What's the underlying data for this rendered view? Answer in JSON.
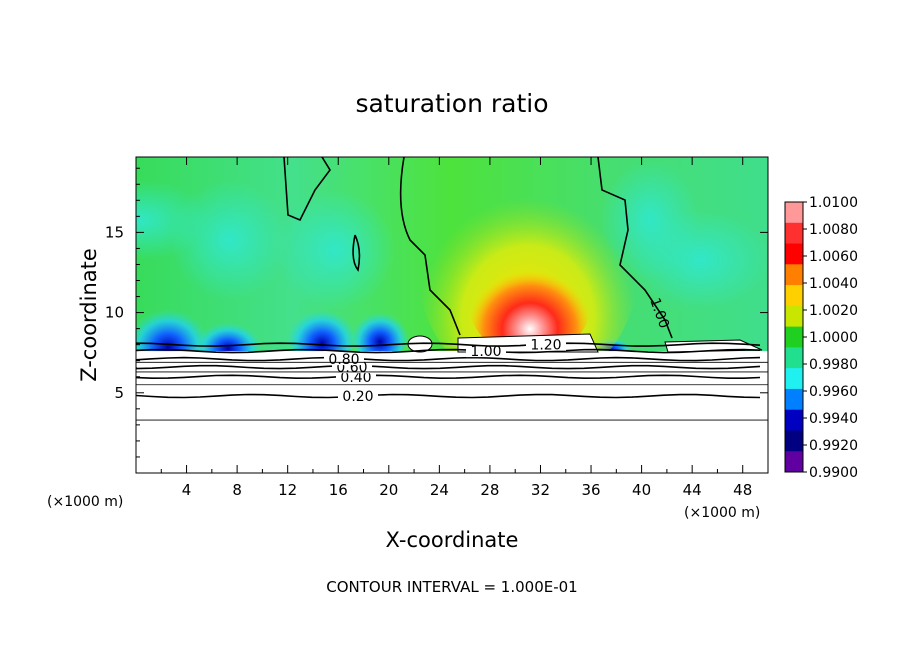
{
  "chart_data": {
    "type": "heatmap",
    "title": "saturation ratio",
    "xlabel": "X-coordinate",
    "ylabel": "Z-coordinate",
    "x_unit": "(×1000 m)",
    "footnote": "CONTOUR INTERVAL = 1.000E-01",
    "xlim": [
      0,
      50
    ],
    "ylim": [
      0,
      19.7
    ],
    "x_ticks": [
      "4",
      "8",
      "12",
      "16",
      "20",
      "24",
      "28",
      "32",
      "36",
      "40",
      "44",
      "48"
    ],
    "x_tick_values": [
      4,
      8,
      12,
      16,
      20,
      24,
      28,
      32,
      36,
      40,
      44,
      48
    ],
    "y_ticks": [
      "5",
      "10",
      "15"
    ],
    "y_tick_values": [
      5,
      10,
      15
    ],
    "colorbar": {
      "labels": [
        "1.0100",
        "1.0080",
        "1.0060",
        "1.0040",
        "1.0020",
        "1.0000",
        "0.9980",
        "0.9960",
        "0.9940",
        "0.9920",
        "0.9900"
      ],
      "values": [
        1.01,
        1.008,
        1.006,
        1.004,
        1.002,
        1.0,
        0.998,
        0.996,
        0.994,
        0.992,
        0.99
      ],
      "colors": [
        "#ff9999",
        "#ff3030",
        "#ff0000",
        "#ff8000",
        "#ffd000",
        "#c8e600",
        "#20d020",
        "#20e090",
        "#20f0f0",
        "#0080ff",
        "#0000c0",
        "#000080",
        "#6000a0"
      ]
    },
    "contour_lines": [
      {
        "level": 0.2,
        "label": "0.20",
        "z": 4.8
      },
      {
        "level": 0.4,
        "label": "0.40",
        "z": 6.0
      },
      {
        "level": 0.6,
        "label": "0.60",
        "z": 6.6
      },
      {
        "level": 0.8,
        "label": "0.80",
        "z": 7.1
      },
      {
        "level": 1.0,
        "label": "1.00",
        "z": 7.6
      },
      {
        "level": 1.2,
        "label": "1.20",
        "z": 8.0
      }
    ],
    "extra_contour_labels": [
      "1.00"
    ],
    "field_regions": [
      {
        "name": "upper background",
        "value": 1.0
      },
      {
        "name": "central supersaturated plume",
        "x_center": 29.5,
        "z_center": 10.5,
        "peak": 1.01
      },
      {
        "name": "subsaturated pockets near z≈8",
        "x_centers": [
          2.5,
          15,
          19
        ],
        "value": 0.992
      }
    ]
  }
}
